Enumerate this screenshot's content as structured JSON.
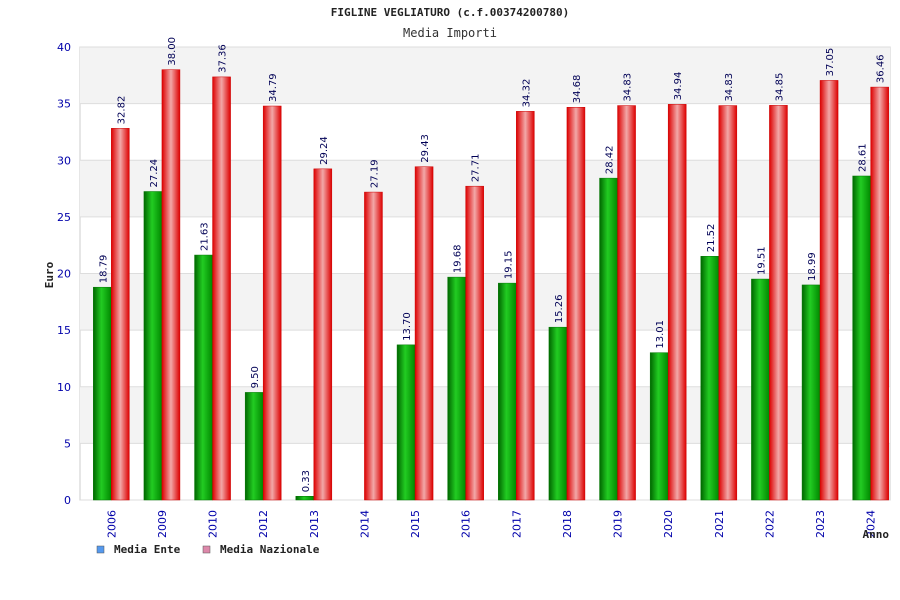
{
  "chart_data": {
    "type": "bar",
    "title": "FIGLINE VEGLIATURO (c.f.00374200780)",
    "subtitle": "Media Importi",
    "xlabel": "Anno",
    "ylabel": "Euro",
    "ylim": [
      0,
      40
    ],
    "yticks": [
      0,
      5,
      10,
      15,
      20,
      25,
      30,
      35,
      40
    ],
    "grid": true,
    "legend_position": "bottom-left",
    "categories": [
      "2006",
      "2009",
      "2010",
      "2012",
      "2013",
      "2014",
      "2015",
      "2016",
      "2017",
      "2018",
      "2019",
      "2020",
      "2021",
      "2022",
      "2023",
      "2024"
    ],
    "series": [
      {
        "name": "Media Ente",
        "color": "#00aa00",
        "legend_color": "#5599ee",
        "values": [
          18.79,
          27.24,
          21.63,
          9.5,
          0.33,
          null,
          13.7,
          19.68,
          19.15,
          15.26,
          28.42,
          13.01,
          21.52,
          19.51,
          18.99,
          28.61
        ],
        "labels": [
          "18.79",
          "27.24",
          "21.63",
          "9.50",
          "0.33",
          "",
          "13.70",
          "19.68",
          "19.15",
          "15.26",
          "28.42",
          "13.01",
          "21.52",
          "19.51",
          "18.99",
          "28.61"
        ]
      },
      {
        "name": "Media Nazionale",
        "color": "#dd0000",
        "legend_color": "#dd88aa",
        "values": [
          32.82,
          38.0,
          37.36,
          34.79,
          29.24,
          27.19,
          29.43,
          27.71,
          34.32,
          34.68,
          34.83,
          34.94,
          34.83,
          34.85,
          37.05,
          36.46
        ],
        "labels": [
          "32.82",
          "38.00",
          "37.36",
          "34.79",
          "29.24",
          "27.19",
          "29.43",
          "27.71",
          "34.32",
          "34.68",
          "34.83",
          "34.94",
          "34.83",
          "34.85",
          "37.05",
          "36.46"
        ]
      }
    ]
  }
}
